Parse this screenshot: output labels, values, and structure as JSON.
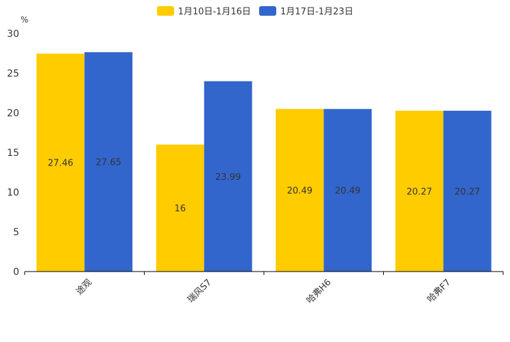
{
  "chart_data": {
    "type": "bar",
    "unit": "%",
    "categories": [
      "途观",
      "瑞风S7",
      "哈弗H6",
      "哈弗F7"
    ],
    "series": [
      {
        "name": "1月10日-1月16日",
        "color": "#ffcc00",
        "values": [
          27.46,
          16,
          20.49,
          20.27
        ],
        "labels": [
          "27.46",
          "16",
          "20.49",
          "20.27"
        ]
      },
      {
        "name": "1月17日-1月23日",
        "color": "#3366cc",
        "values": [
          27.65,
          23.99,
          20.49,
          20.27
        ],
        "labels": [
          "27.65",
          "23.99",
          "20.49",
          "20.27"
        ]
      }
    ],
    "ylim": [
      0,
      30
    ],
    "yticks": [
      0,
      5,
      10,
      15,
      20,
      25,
      30
    ],
    "legend_position": "top-center",
    "grid": false
  }
}
